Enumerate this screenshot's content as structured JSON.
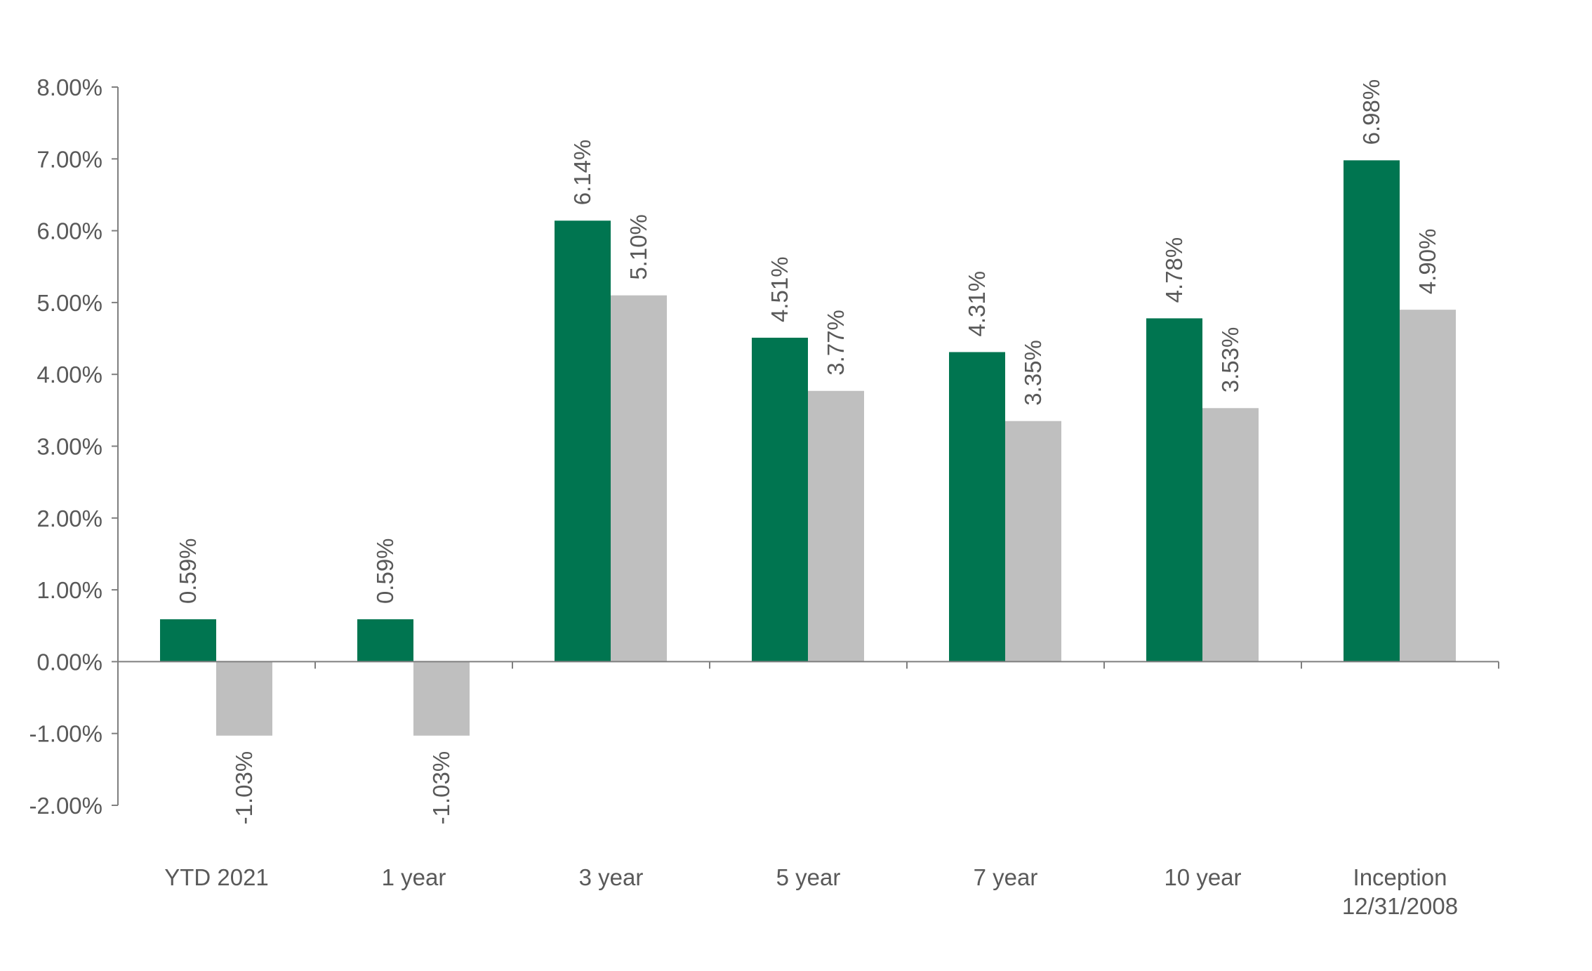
{
  "chart_data": {
    "type": "bar",
    "title": "",
    "xlabel": "",
    "ylabel": "",
    "ylim": [
      -2,
      8
    ],
    "yticks": [
      "8.00%",
      "7.00%",
      "6.00%",
      "5.00%",
      "4.00%",
      "3.00%",
      "2.00%",
      "1.00%",
      "0.00%",
      "-1.00%",
      "-2.00%"
    ],
    "ytick_values": [
      8,
      7,
      6,
      5,
      4,
      3,
      2,
      1,
      0,
      -1,
      -2
    ],
    "grid": false,
    "legend": "none",
    "categories": [
      [
        "YTD 2021"
      ],
      [
        "1 year"
      ],
      [
        "3 year"
      ],
      [
        "5 year"
      ],
      [
        "7 year"
      ],
      [
        "10 year"
      ],
      [
        "Inception",
        "12/31/2008"
      ]
    ],
    "series": [
      {
        "color": "#007550",
        "values": [
          0.59,
          0.59,
          6.14,
          4.51,
          4.31,
          4.78,
          6.98
        ],
        "labels": [
          "0.59%",
          "0.59%",
          "6.14%",
          "4.51%",
          "4.31%",
          "4.78%",
          "6.98%"
        ]
      },
      {
        "color": "#bfbfbf",
        "values": [
          -1.03,
          -1.03,
          5.1,
          3.77,
          3.35,
          3.53,
          4.9
        ],
        "labels": [
          "-1.03%",
          "-1.03%",
          "5.10%",
          "3.77%",
          "3.35%",
          "3.53%",
          "4.90%"
        ]
      }
    ]
  }
}
